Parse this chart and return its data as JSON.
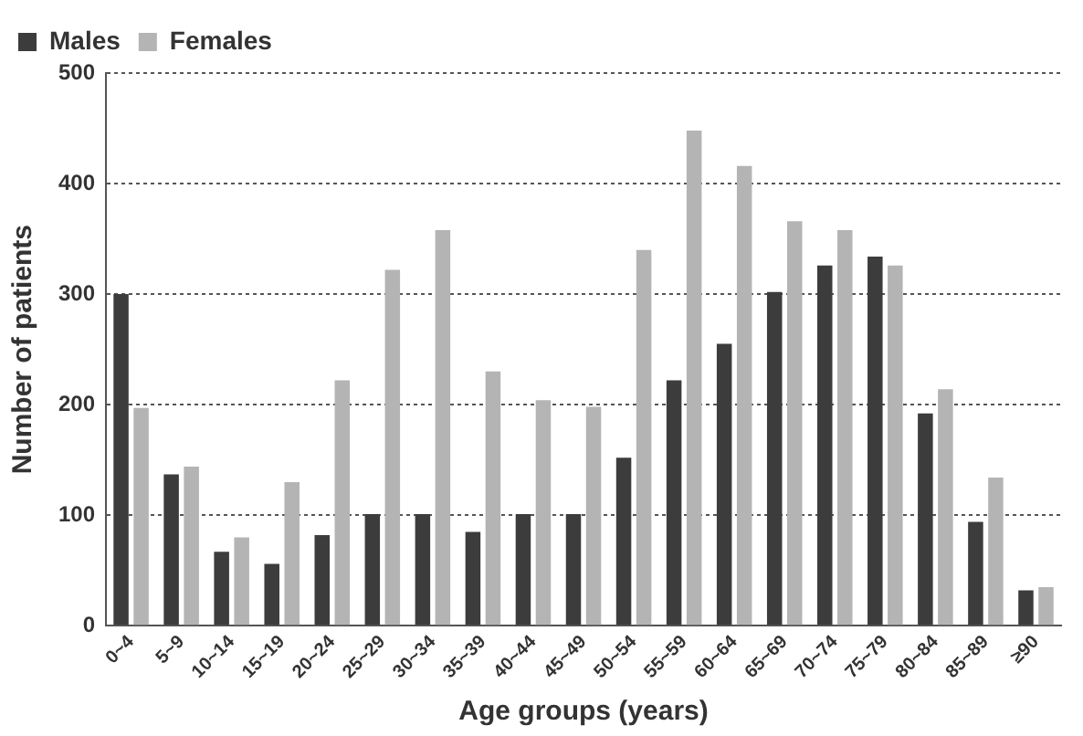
{
  "chart_data": {
    "type": "bar",
    "xlabel": "Age groups (years)",
    "ylabel": "Number of patients",
    "categories": [
      "0~4",
      "5~9",
      "10~14",
      "15~19",
      "20~24",
      "25~29",
      "30~34",
      "35~39",
      "40~44",
      "45~49",
      "50~54",
      "55~59",
      "60~64",
      "65~69",
      "70~74",
      "75~79",
      "80~84",
      "85~89",
      "≥90"
    ],
    "series": [
      {
        "name": "Males",
        "color": "#3c3c3c",
        "values": [
          300,
          137,
          67,
          56,
          82,
          101,
          101,
          85,
          101,
          101,
          152,
          222,
          255,
          302,
          326,
          334,
          192,
          94,
          32
        ]
      },
      {
        "name": "Females",
        "color": "#b4b4b4",
        "values": [
          197,
          144,
          80,
          130,
          222,
          322,
          358,
          230,
          204,
          198,
          340,
          448,
          416,
          366,
          358,
          326,
          214,
          134,
          35
        ]
      }
    ],
    "ylim": [
      0,
      500
    ],
    "yticks": [
      0,
      100,
      200,
      300,
      400,
      500
    ],
    "grid": "y",
    "legend": "top left"
  }
}
